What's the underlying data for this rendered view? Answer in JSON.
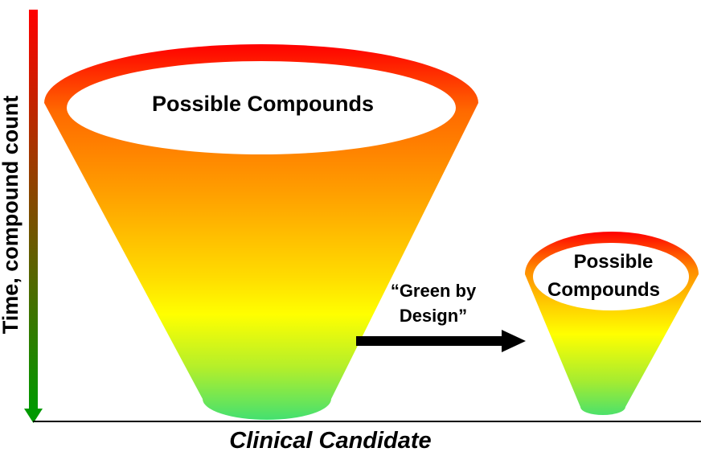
{
  "y_axis": {
    "label": "Time, compound count",
    "gradient_top": "#ff0000",
    "gradient_bottom": "#009900"
  },
  "x_axis": {
    "label": "Clinical Candidate"
  },
  "large_funnel": {
    "label": "Possible Compounds"
  },
  "small_funnel": {
    "label_line1": "Possible",
    "label_line2": "Compounds"
  },
  "transition": {
    "label_line1": "“Green by",
    "label_line2": "Design”"
  },
  "colors": {
    "rim": "#ff0000",
    "upper": "#ff8a00",
    "middle": "#ffcc00",
    "yellow": "#ffff00",
    "bottom": "#44e070",
    "arrow": "#000000"
  }
}
